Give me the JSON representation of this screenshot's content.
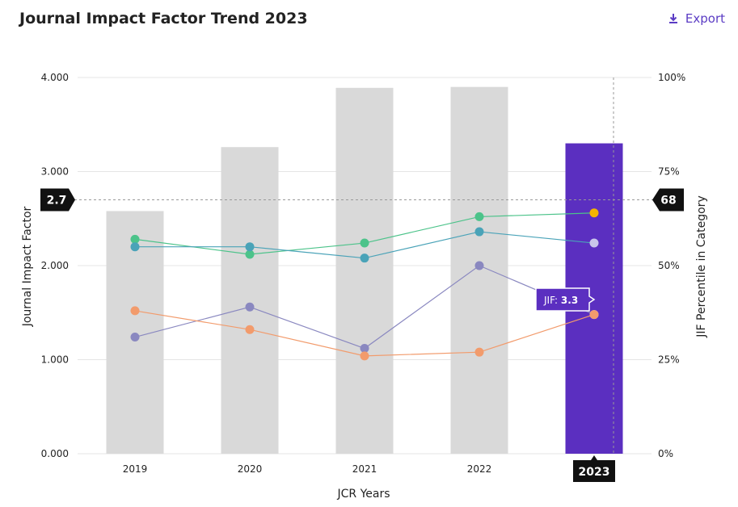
{
  "header": {
    "title": "Journal Impact Factor Trend 2023",
    "export_label": "Export"
  },
  "chart_data": {
    "type": "bar",
    "categories": [
      "2019",
      "2020",
      "2021",
      "2022",
      "2023"
    ],
    "xlabel": "JCR Years",
    "ylabel": "Journal Impact Factor",
    "ylabel_right": "JIF Percentile in Category",
    "ylim": [
      0,
      4
    ],
    "ylim_right": [
      0,
      100
    ],
    "yticks": [
      "0.000",
      "1.000",
      "2.000",
      "3.000",
      "4.000"
    ],
    "yticks_right": [
      "0%",
      "25%",
      "50%",
      "75%",
      "100%"
    ],
    "bars": {
      "name": "Journal Impact Factor",
      "values": [
        2.58,
        3.26,
        3.89,
        3.9,
        3.3
      ],
      "highlight_index": 4
    },
    "series": [
      {
        "name": "series-green",
        "color": "#4cc38a",
        "values": [
          57,
          53,
          56,
          63,
          64
        ]
      },
      {
        "name": "series-teal",
        "color": "#4aa3b8",
        "values": [
          55,
          55,
          52,
          59,
          56
        ]
      },
      {
        "name": "series-purple",
        "color": "#8a88c0",
        "values": [
          31,
          39,
          28,
          50,
          37
        ]
      },
      {
        "name": "series-orange",
        "color": "#f29b6c",
        "values": [
          38,
          33,
          26,
          27,
          37
        ]
      }
    ],
    "last_point_colors": [
      "#f4b400",
      "#c9c6ea",
      "#ffffff",
      null
    ],
    "crosshair": {
      "left_value": "2.7",
      "right_value": "68",
      "x_label": "2023"
    },
    "tooltip": {
      "label": "JIF:",
      "value": "3.3"
    },
    "colors": {
      "bar": "#d9d9d9",
      "bar_highlight": "#5b2fc0",
      "grid": "#e5e5e5",
      "tag_bg": "#111111",
      "tooltip_bg": "#5b2fc0"
    }
  }
}
